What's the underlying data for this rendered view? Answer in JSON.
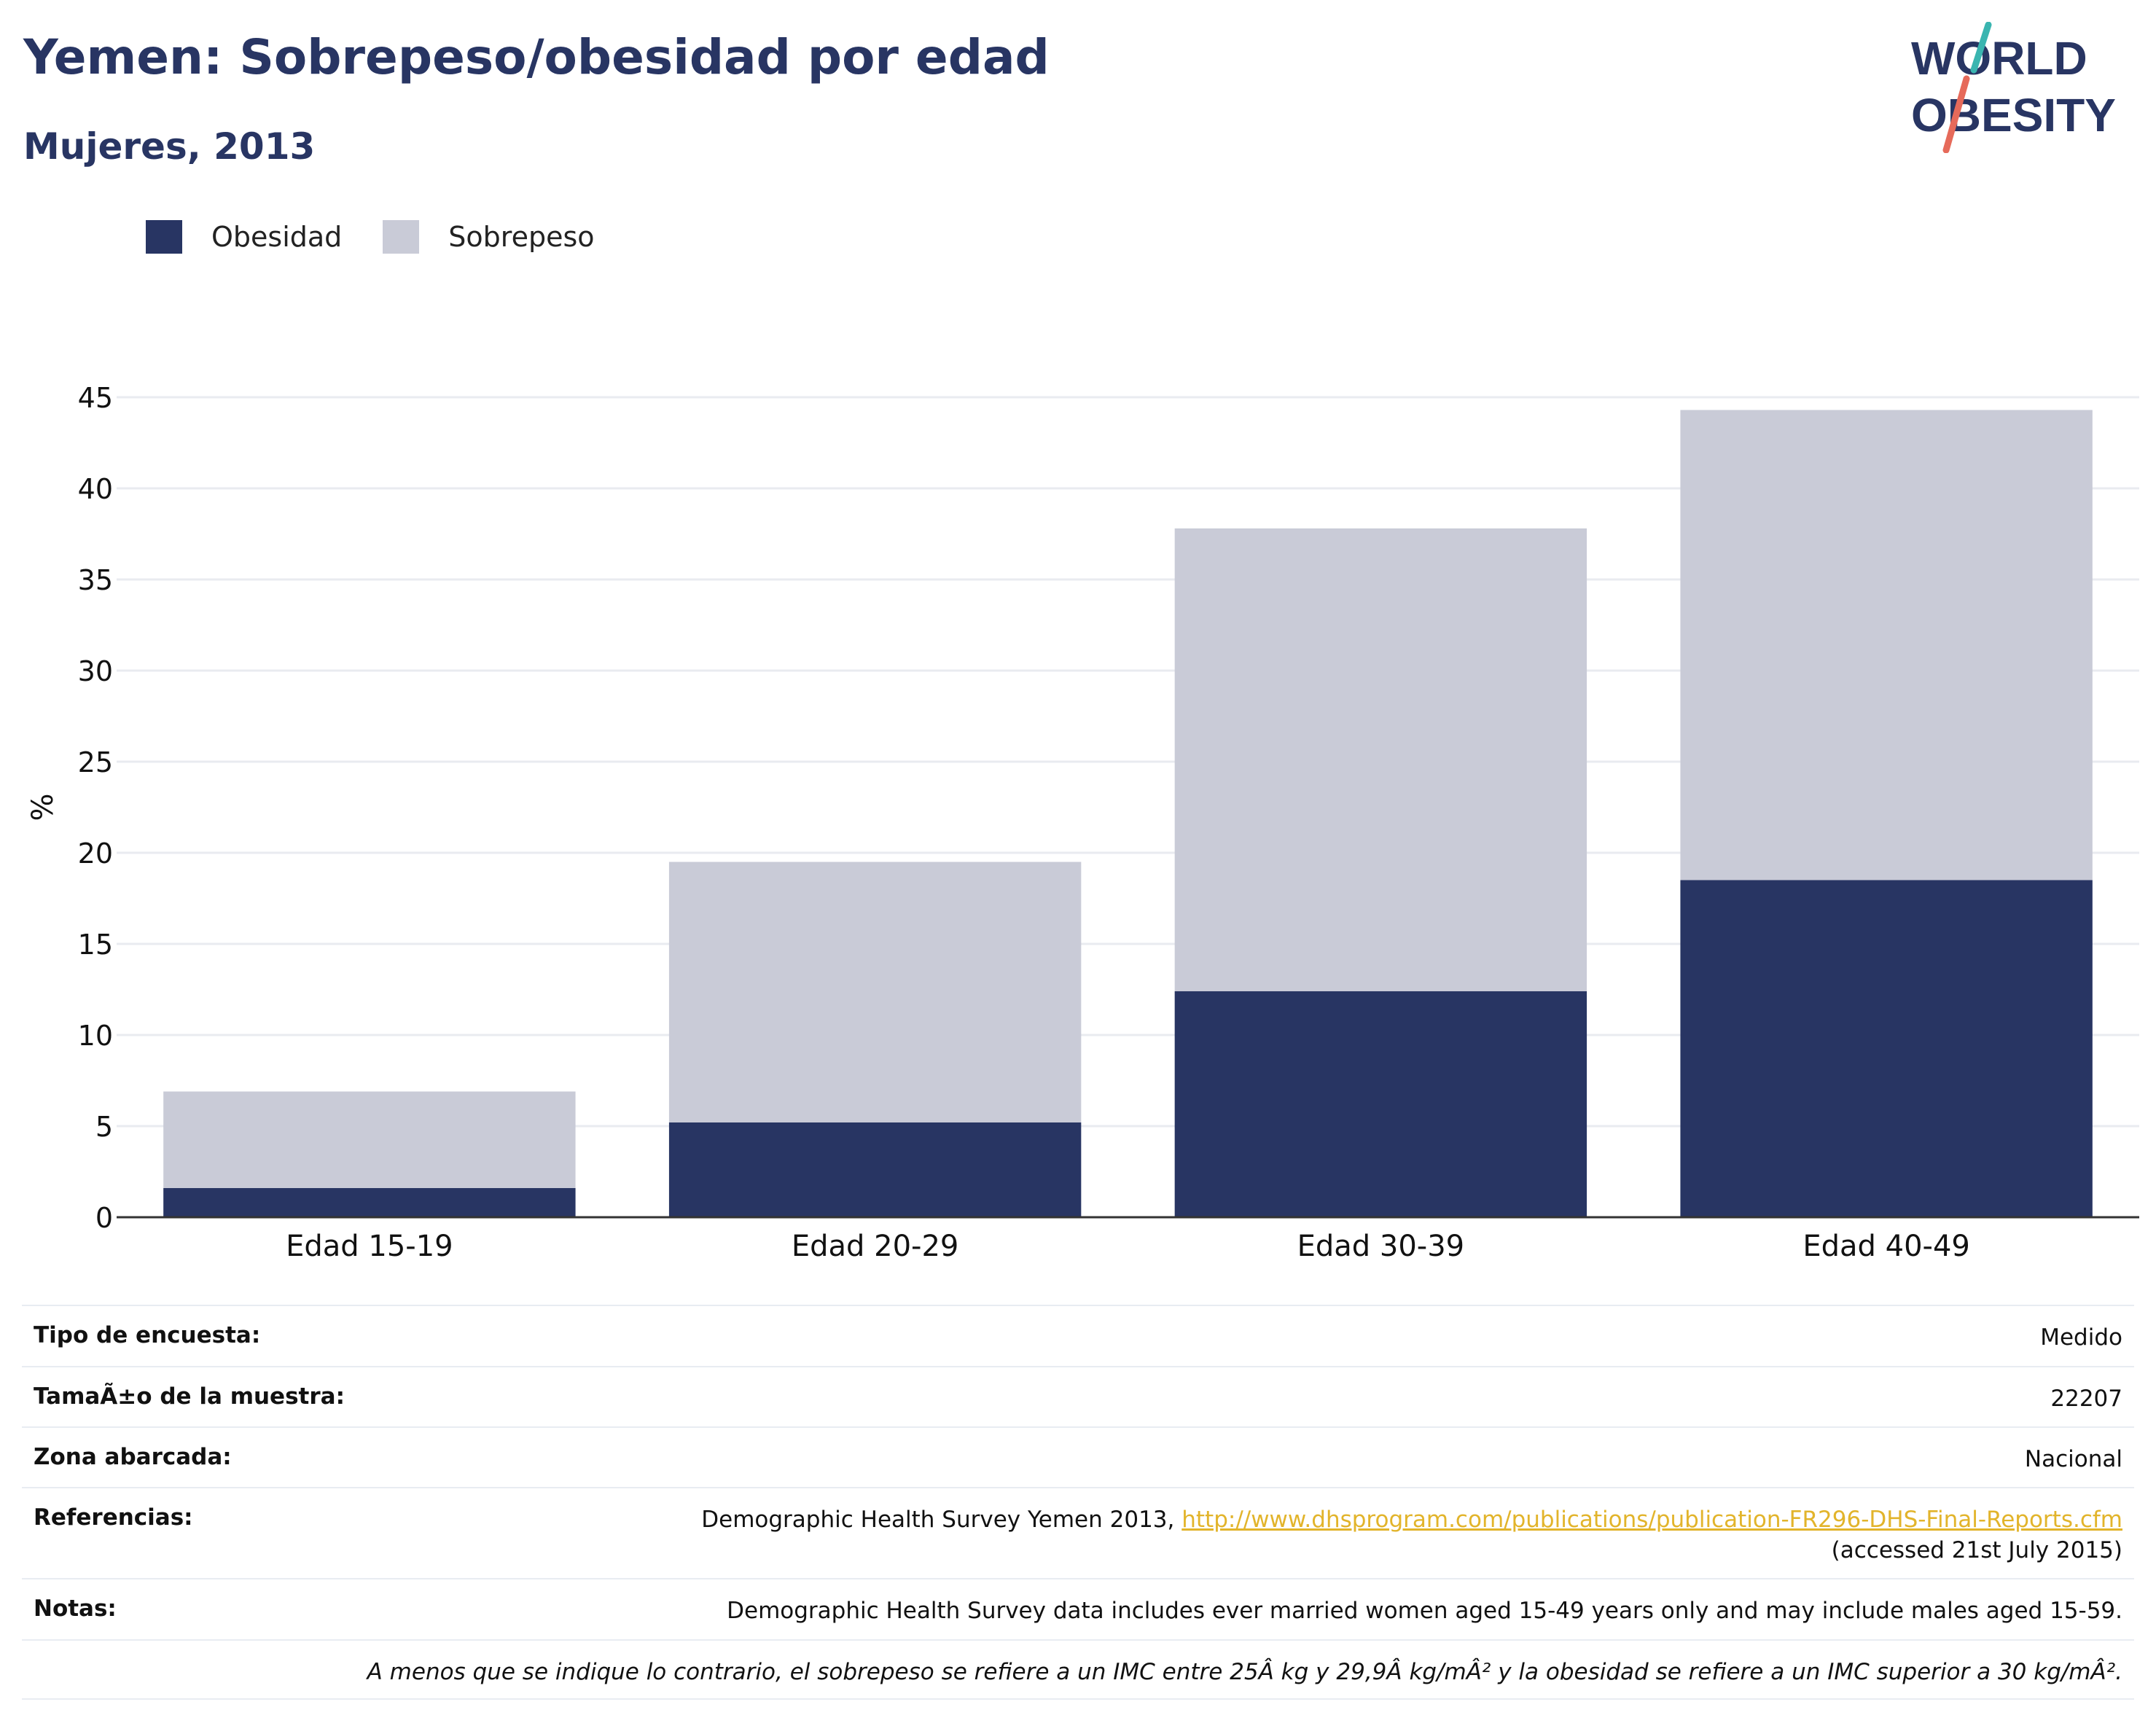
{
  "header": {
    "title": "Yemen: Sobrepeso/obesidad por edad",
    "subtitle": "Mujeres, 2013"
  },
  "logo": {
    "line1": "WORLD",
    "line2": "OBESITY",
    "icon": "world-obesity-logo"
  },
  "legend": {
    "items": [
      {
        "label": "Obesidad",
        "color": "#283563"
      },
      {
        "label": "Sobrepeso",
        "color": "#c9cbd7"
      }
    ]
  },
  "chart_data": {
    "type": "bar",
    "stacked": true,
    "categories": [
      "Edad 15-19",
      "Edad 20-29",
      "Edad 30-39",
      "Edad 40-49"
    ],
    "series": [
      {
        "name": "Obesidad",
        "color": "#283563",
        "values": [
          1.6,
          5.2,
          12.4,
          18.5
        ]
      },
      {
        "name": "Sobrepeso",
        "color": "#c9cbd7",
        "values": [
          5.3,
          14.3,
          25.4,
          25.8
        ]
      }
    ],
    "xlabel": "",
    "ylabel": "%",
    "ylim": [
      0,
      45
    ],
    "yticks": [
      0,
      5,
      10,
      15,
      20,
      25,
      30,
      35,
      40,
      45
    ],
    "grid": true,
    "legend_position": "top-left"
  },
  "info": {
    "rows": [
      {
        "label": "Tipo de encuesta:",
        "value": "Medido"
      },
      {
        "label": "TamaÃ±o de la muestra:",
        "value": "22207"
      },
      {
        "label": "Zona abarcada:",
        "value": "Nacional"
      },
      {
        "label": "Referencias:",
        "value": "Demographic Health Survey Yemen 2013, ",
        "link": "http://www.dhsprogram.com/publications/publication-FR296-DHS-Final-Reports.cfm",
        "extra": "(accessed 21st July 2015)"
      },
      {
        "label": "Notas:",
        "value": "Demographic Health Survey data includes ever married women aged 15-49 years only and may include males aged 15-59."
      }
    ],
    "footnote": "A menos que se indique lo contrario, el sobrepeso se refiere a un IMC entre 25Â kg y 29,9Â kg/mÂ² y la obesidad se refiere a un IMC superior a 30 kg/mÂ²."
  }
}
